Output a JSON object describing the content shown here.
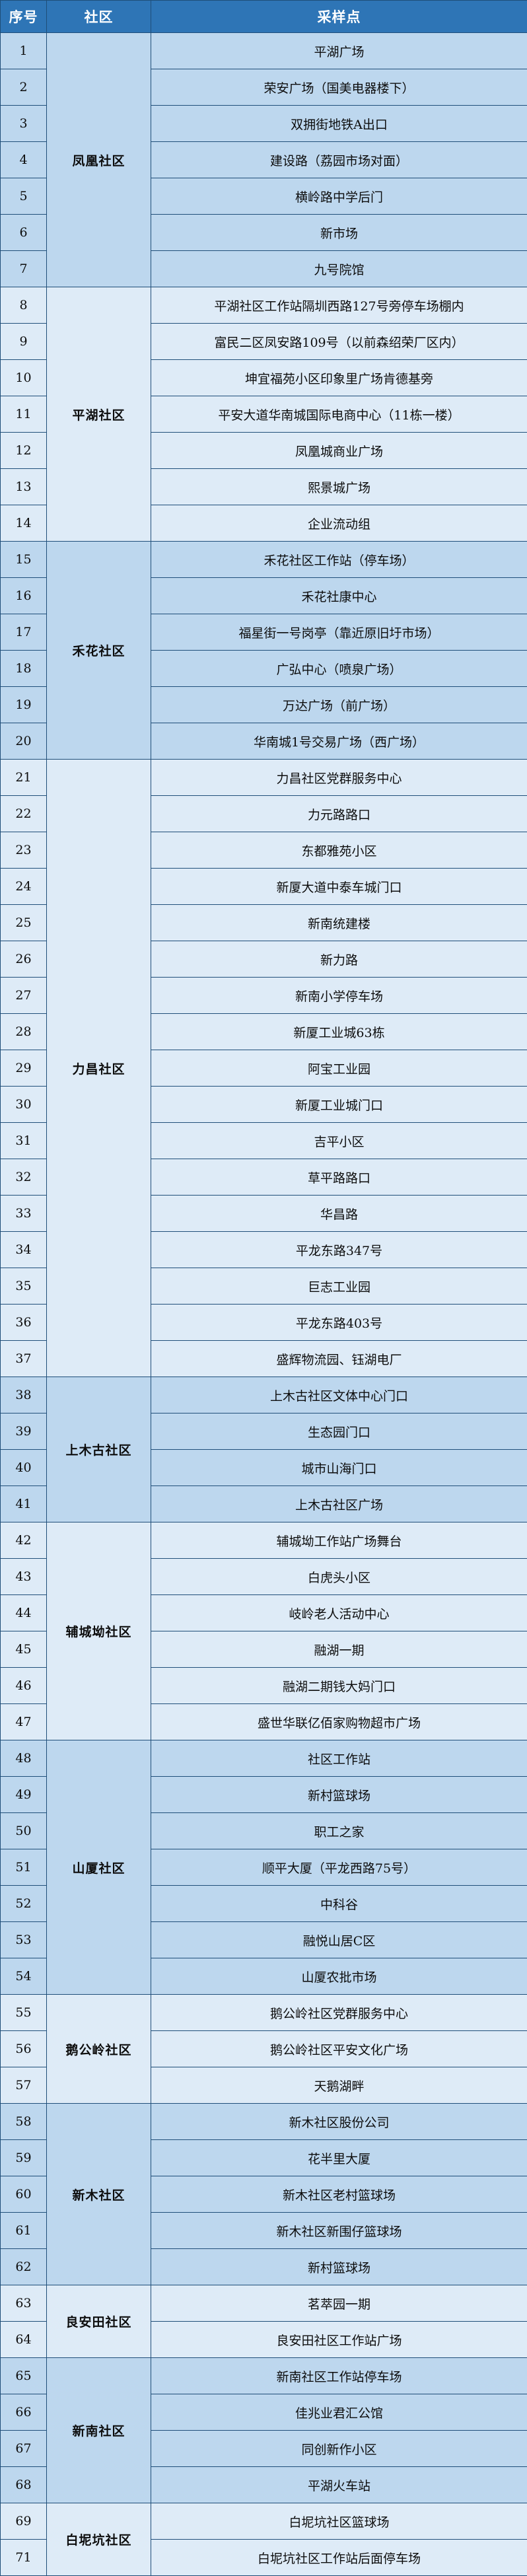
{
  "header": {
    "index_label": "序号",
    "community_label": "社区",
    "site_label": "采样点"
  },
  "colors": {
    "header_bg": "#2E75B6",
    "header_text": "#FFFFFF",
    "group_dark": "#BDD7EE",
    "group_light": "#DEEBF7",
    "border": "#1F4E79",
    "text": "#0D0D0D"
  },
  "groups": [
    {
      "community": "凤凰社区",
      "rows": [
        {
          "no": "1",
          "site": "平湖广场"
        },
        {
          "no": "2",
          "site": "荣安广场（国美电器楼下）"
        },
        {
          "no": "3",
          "site": "双拥街地铁A出口"
        },
        {
          "no": "4",
          "site": "建设路（荔园市场对面）"
        },
        {
          "no": "5",
          "site": "横岭路中学后门"
        },
        {
          "no": "6",
          "site": "新市场"
        },
        {
          "no": "7",
          "site": "九号院馆"
        }
      ]
    },
    {
      "community": "平湖社区",
      "rows": [
        {
          "no": "8",
          "site": "平湖社区工作站隔圳西路127号旁停车场棚内"
        },
        {
          "no": "9",
          "site": "富民二区凤安路109号（以前森绍荣厂区内）"
        },
        {
          "no": "10",
          "site": "坤宜福苑小区印象里广场肯德基旁"
        },
        {
          "no": "11",
          "site": "平安大道华南城国际电商中心（11栋一楼）"
        },
        {
          "no": "12",
          "site": "凤凰城商业广场"
        },
        {
          "no": "13",
          "site": "熙景城广场"
        },
        {
          "no": "14",
          "site": "企业流动组"
        }
      ]
    },
    {
      "community": "禾花社区",
      "rows": [
        {
          "no": "15",
          "site": "禾花社区工作站（停车场）"
        },
        {
          "no": "16",
          "site": "禾花社康中心"
        },
        {
          "no": "17",
          "site": "福星街一号岗亭（靠近原旧圩市场）"
        },
        {
          "no": "18",
          "site": "广弘中心（喷泉广场）"
        },
        {
          "no": "19",
          "site": "万达广场（前广场）"
        },
        {
          "no": "20",
          "site": "华南城1号交易广场（西广场）"
        }
      ]
    },
    {
      "community": "力昌社区",
      "rows": [
        {
          "no": "21",
          "site": "力昌社区党群服务中心"
        },
        {
          "no": "22",
          "site": "力元路路口"
        },
        {
          "no": "23",
          "site": "东都雅苑小区"
        },
        {
          "no": "24",
          "site": "新厦大道中泰车城门口"
        },
        {
          "no": "25",
          "site": "新南统建楼"
        },
        {
          "no": "26",
          "site": "新力路"
        },
        {
          "no": "27",
          "site": "新南小学停车场"
        },
        {
          "no": "28",
          "site": "新厦工业城63栋"
        },
        {
          "no": "29",
          "site": "阿宝工业园"
        },
        {
          "no": "30",
          "site": "新厦工业城门口"
        },
        {
          "no": "31",
          "site": "吉平小区"
        },
        {
          "no": "32",
          "site": "草平路路口"
        },
        {
          "no": "33",
          "site": "华昌路"
        },
        {
          "no": "34",
          "site": "平龙东路347号"
        },
        {
          "no": "35",
          "site": "巨志工业园"
        },
        {
          "no": "36",
          "site": "平龙东路403号"
        },
        {
          "no": "37",
          "site": "盛辉物流园、钰湖电厂"
        }
      ]
    },
    {
      "community": "上木古社区",
      "rows": [
        {
          "no": "38",
          "site": "上木古社区文体中心门口"
        },
        {
          "no": "39",
          "site": "生态园门口"
        },
        {
          "no": "40",
          "site": "城市山海门口"
        },
        {
          "no": "41",
          "site": "上木古社区广场"
        }
      ]
    },
    {
      "community": "辅城坳社区",
      "rows": [
        {
          "no": "42",
          "site": "辅城坳工作站广场舞台"
        },
        {
          "no": "43",
          "site": "白虎头小区"
        },
        {
          "no": "44",
          "site": "岐岭老人活动中心"
        },
        {
          "no": "45",
          "site": "融湖一期"
        },
        {
          "no": "46",
          "site": "融湖二期钱大妈门口"
        },
        {
          "no": "47",
          "site": "盛世华联亿佰家购物超市广场"
        }
      ]
    },
    {
      "community": "山厦社区",
      "rows": [
        {
          "no": "48",
          "site": "社区工作站"
        },
        {
          "no": "49",
          "site": "新村篮球场"
        },
        {
          "no": "50",
          "site": "职工之家"
        },
        {
          "no": "51",
          "site": "顺平大厦（平龙西路75号）"
        },
        {
          "no": "52",
          "site": "中科谷"
        },
        {
          "no": "53",
          "site": "融悦山居C区"
        },
        {
          "no": "54",
          "site": "山厦农批市场"
        }
      ]
    },
    {
      "community": "鹅公岭社区",
      "rows": [
        {
          "no": "55",
          "site": "鹅公岭社区党群服务中心"
        },
        {
          "no": "56",
          "site": "鹅公岭社区平安文化广场"
        },
        {
          "no": "57",
          "site": "天鹅湖畔"
        }
      ]
    },
    {
      "community": "新木社区",
      "rows": [
        {
          "no": "58",
          "site": "新木社区股份公司"
        },
        {
          "no": "59",
          "site": "花半里大厦"
        },
        {
          "no": "60",
          "site": "新木社区老村篮球场"
        },
        {
          "no": "61",
          "site": "新木社区新围仔篮球场"
        },
        {
          "no": "62",
          "site": "新村篮球场"
        }
      ]
    },
    {
      "community": "良安田社区",
      "rows": [
        {
          "no": "63",
          "site": "茗萃园一期"
        },
        {
          "no": "64",
          "site": "良安田社区工作站广场"
        }
      ]
    },
    {
      "community": "新南社区",
      "rows": [
        {
          "no": "65",
          "site": "新南社区工作站停车场"
        },
        {
          "no": "66",
          "site": "佳兆业君汇公馆"
        },
        {
          "no": "67",
          "site": "同创新作小区"
        },
        {
          "no": "68",
          "site": "平湖火车站"
        }
      ]
    },
    {
      "community": "白坭坑社区",
      "rows": [
        {
          "no": "69",
          "site": "白坭坑社区篮球场"
        },
        {
          "no": "71",
          "site": "白坭坑社区工作站后面停车场"
        }
      ]
    }
  ]
}
